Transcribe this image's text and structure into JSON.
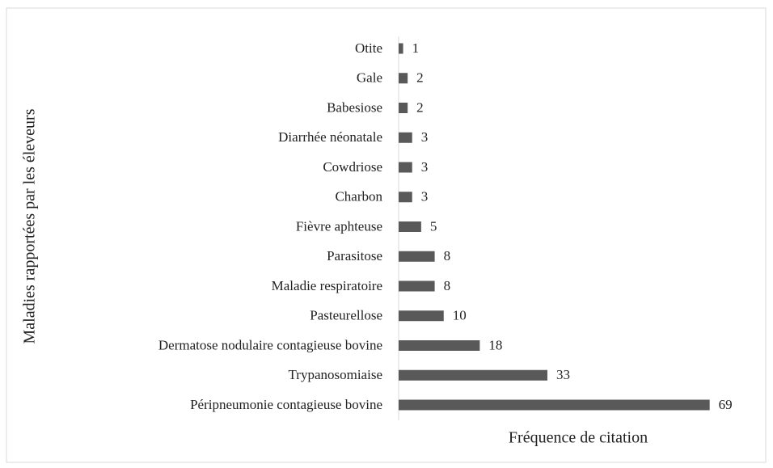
{
  "chart_data": {
    "type": "bar",
    "orientation": "horizontal",
    "x_label": "Fréquence de citation",
    "y_label": "Maladies rapportées par les éleveurs",
    "categories": [
      "Otite",
      "Gale",
      "Babesiose",
      "Diarrhée néonatale",
      "Cowdriose",
      "Charbon",
      "Fièvre aphteuse",
      "Parasitose",
      "Maladie respiratoire",
      "Pasteurellose",
      "Dermatose nodulaire contagieuse bovine",
      "Trypanosomiaise",
      "Péripneumonie contagieuse bovine"
    ],
    "values": [
      1,
      2,
      2,
      3,
      3,
      3,
      5,
      8,
      8,
      10,
      18,
      33,
      69
    ],
    "color": "#595959",
    "xlim": [
      0,
      80
    ]
  }
}
